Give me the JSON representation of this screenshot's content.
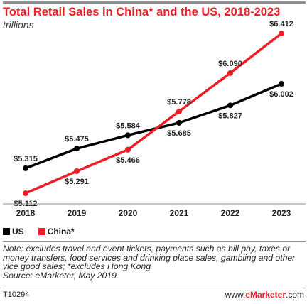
{
  "header": {
    "title": "Total Retail Sales in China* and the US, 2018-2023",
    "subtitle": "trillions"
  },
  "chart_data": {
    "type": "line",
    "categories": [
      "2018",
      "2019",
      "2020",
      "2021",
      "2022",
      "2023"
    ],
    "series": [
      {
        "name": "US",
        "color": "#000000",
        "values": [
          5.315,
          5.475,
          5.584,
          5.685,
          5.827,
          6.002
        ],
        "labels": [
          "$5.315",
          "$5.475",
          "$5.584",
          "$5.685",
          "$5.827",
          "$6.002"
        ]
      },
      {
        "name": "China*",
        "color": "#ee1c25",
        "values": [
          5.112,
          5.291,
          5.466,
          5.778,
          6.09,
          6.412
        ],
        "labels": [
          "$5.112",
          "$5.291",
          "$5.466",
          "$5.778",
          "$6.090",
          "$6.412"
        ]
      }
    ],
    "ylim": [
      5.0,
      6.5
    ],
    "grid": false,
    "legend_position": "bottom-left"
  },
  "legend": {
    "us": "US",
    "china": "China*"
  },
  "note": {
    "line1": "Note: excludes travel and event tickets, payments such as bill pay, taxes or money transfers, food services and drinking place sales, gambling and other vice good sales; *excludes Hong Kong",
    "line2": "Source: eMarketer, May 2019"
  },
  "footer": {
    "id": "T10294",
    "site_prefix": "www.",
    "site_brand": "eMarketer",
    "site_suffix": ".com"
  }
}
